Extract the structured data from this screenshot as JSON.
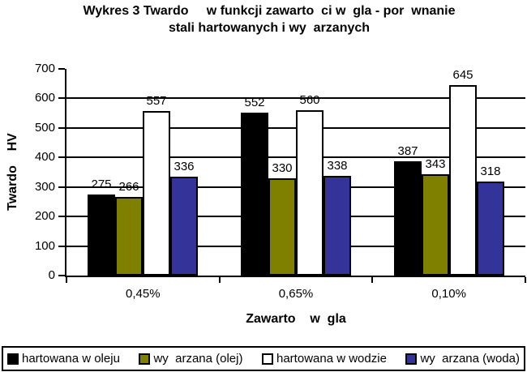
{
  "title": {
    "line1": "Wykres 3 Twardo     w funkcji zawarto  ci w  gla - por  wnanie",
    "line2": "stali hartowanych i wy  arzanych"
  },
  "chart_data": {
    "type": "bar",
    "title": "Wykres 3 Twardo w funkcji zawarto ci w gla - por wnanie stali hartowanych i wy arzanych",
    "categories": [
      "0,45%",
      "0,65%",
      "0,10%"
    ],
    "series": [
      {
        "name": "hartowana w oleju",
        "color": "#000000",
        "values": [
          275,
          552,
          387
        ]
      },
      {
        "name": "wy  arzana (olej)",
        "color": "#808000",
        "values": [
          266,
          330,
          343
        ]
      },
      {
        "name": "hartowana w wodzie",
        "color": "#ffffff",
        "values": [
          557,
          560,
          645
        ]
      },
      {
        "name": "wy  arzana (woda)",
        "color": "#333399",
        "values": [
          336,
          338,
          318
        ]
      }
    ],
    "xlabel": "Zawarto    w  gla",
    "ylabel": "Twardo    HV",
    "ylim": [
      0,
      700
    ],
    "ytick_step": 100,
    "grid": true,
    "legend_position": "bottom",
    "colors": {
      "axis": "#000000",
      "gridline": "#000000",
      "background": "#ffffff"
    }
  }
}
